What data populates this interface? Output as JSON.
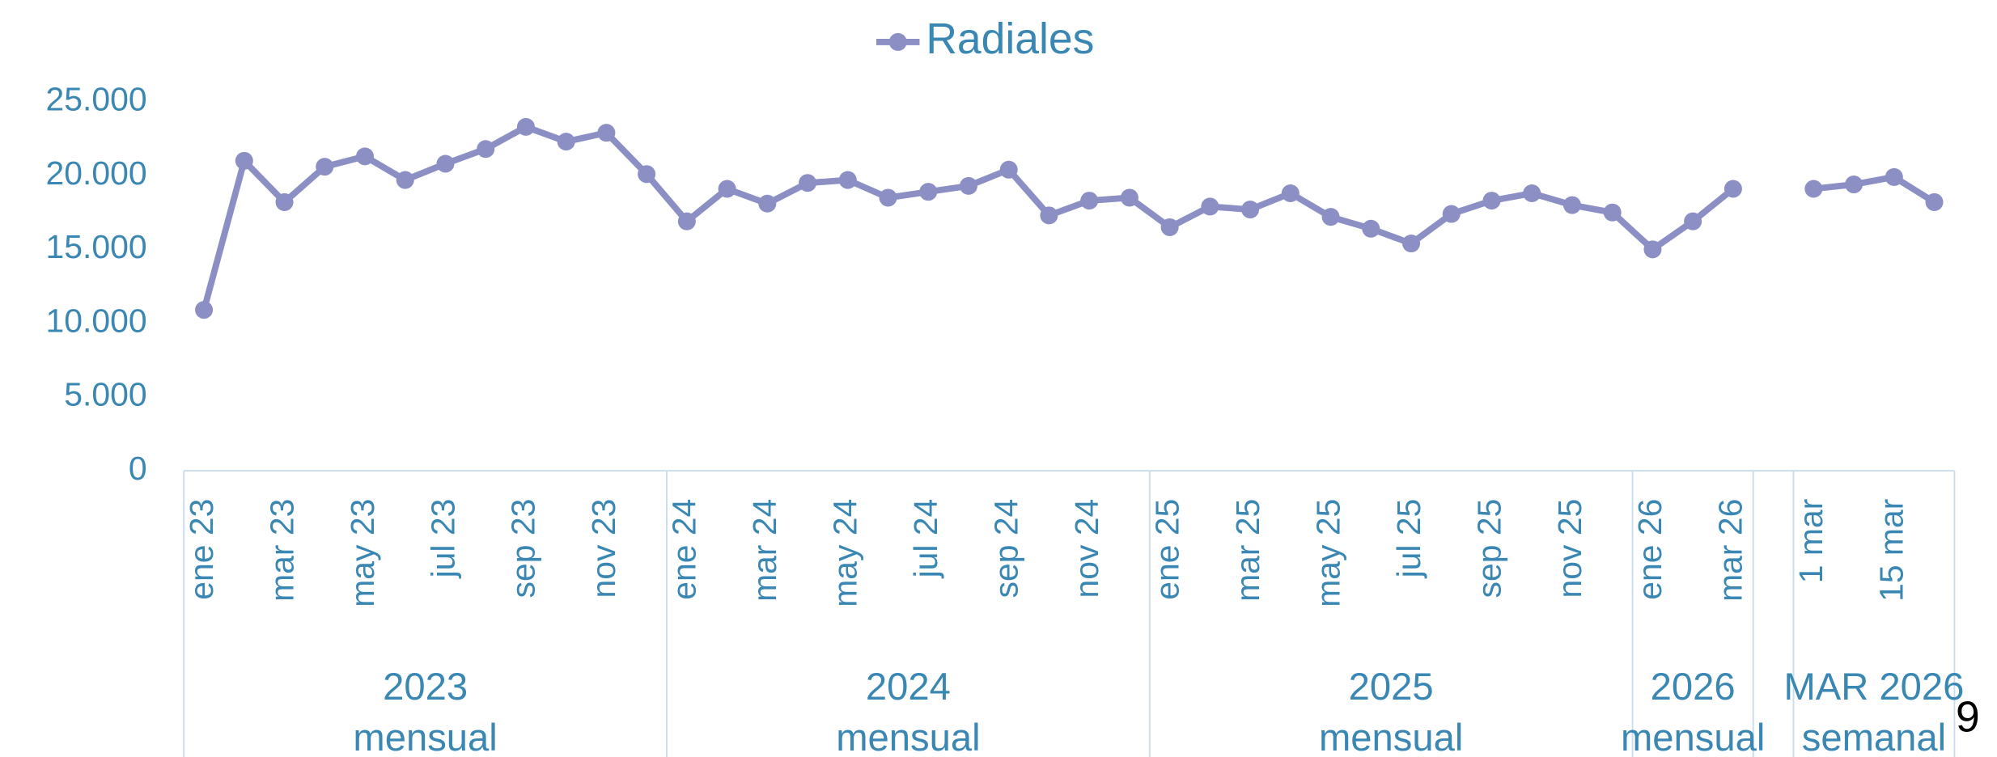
{
  "chart_data": {
    "type": "line",
    "legend": "top",
    "categories": [
      "ene 23",
      null,
      "mar 23",
      null,
      "may 23",
      null,
      "jul 23",
      null,
      "sep 23",
      null,
      "nov 23",
      null,
      "ene 24",
      null,
      "mar 24",
      null,
      "may 24",
      null,
      "jul 24",
      null,
      "sep 24",
      null,
      "nov 24",
      null,
      "ene 25",
      null,
      "mar 25",
      null,
      "may 25",
      null,
      "jul 25",
      null,
      "sep 25",
      null,
      "nov 25",
      null,
      "ene 26",
      null,
      "mar 26",
      null,
      "1 mar",
      null,
      "15 mar",
      null
    ],
    "groups": [
      {
        "name": "2023",
        "sub": "mensual",
        "span": 12
      },
      {
        "name": "2024",
        "sub": "mensual",
        "span": 12
      },
      {
        "name": "2025",
        "sub": "mensual",
        "span": 12
      },
      {
        "name": "2026",
        "sub": "mensual",
        "span": 3
      },
      {
        "name": null,
        "sub": null,
        "span": 1
      },
      {
        "name": "MAR 2026",
        "sub": "semanal",
        "span": 4
      }
    ],
    "series": [
      {
        "name": "Radiales",
        "color": "#8c8fc4",
        "values": [
          10900,
          21000,
          18200,
          20600,
          21300,
          19700,
          20800,
          21800,
          23300,
          22300,
          22900,
          20100,
          16900,
          19100,
          18100,
          19500,
          19700,
          18500,
          18900,
          19300,
          20400,
          17300,
          18300,
          18500,
          16500,
          17900,
          17700,
          18800,
          17200,
          16400,
          15400,
          17400,
          18300,
          18800,
          18000,
          17500,
          15000,
          16900,
          19100,
          null,
          19100,
          19400,
          19900,
          18200
        ]
      }
    ],
    "ylim": [
      0,
      25000
    ],
    "yticks": [
      0,
      {
        "value": 5000,
        "label": "5.000"
      },
      {
        "value": 10000,
        "label": "10.000"
      },
      {
        "value": 15000,
        "label": "15.000"
      },
      {
        "value": 20000,
        "label": "20.000"
      },
      {
        "value": 25000,
        "label": "25.000"
      }
    ],
    "grid": false,
    "page_number": "9"
  }
}
